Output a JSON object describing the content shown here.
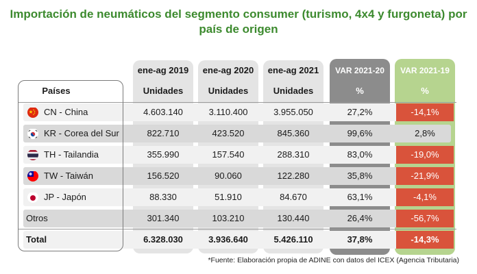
{
  "title_line1": "Importación de neumáticos del segmento consumer (turismo, 4x4 y furgoneta) por",
  "title_line2": "país de origen",
  "chart_data": {
    "type": "table",
    "column_headers": [
      "ene-ag 2019",
      "ene-ag 2020",
      "ene-ag 2021",
      "VAR 2021-20",
      "VAR 2021-19"
    ],
    "sub_headers": {
      "first": "Países",
      "units": "Unidades",
      "pct": "%"
    },
    "rows": [
      {
        "flag": "china-flag-icon",
        "country": "CN - China",
        "v2019": "4.603.140",
        "v2020": "3.110.400",
        "v2021": "3.955.050",
        "var2120": "27,2%",
        "var2119": "-14,1%",
        "var2119_negative": true
      },
      {
        "flag": "south-korea-flag-icon",
        "country": "KR - Corea del Sur",
        "v2019": "822.710",
        "v2020": "423.520",
        "v2021": "845.360",
        "var2120": "99,6%",
        "var2119": "2,8%",
        "var2119_negative": false
      },
      {
        "flag": "thailand-flag-icon",
        "country": "TH - Tailandia",
        "v2019": "355.990",
        "v2020": "157.540",
        "v2021": "288.310",
        "var2120": "83,0%",
        "var2119": "-19,0%",
        "var2119_negative": true
      },
      {
        "flag": "taiwan-flag-icon",
        "country": "TW - Taiwán",
        "v2019": "156.520",
        "v2020": "90.060",
        "v2021": "122.280",
        "var2120": "35,8%",
        "var2119": "-21,9%",
        "var2119_negative": true
      },
      {
        "flag": "japan-flag-icon",
        "country": "JP - Japón",
        "v2019": "88.330",
        "v2020": "51.910",
        "v2021": "84.670",
        "var2120": "63,1%",
        "var2119": "-4,1%",
        "var2119_negative": true
      },
      {
        "flag": "",
        "country": "Otros",
        "v2019": "301.340",
        "v2020": "103.210",
        "v2021": "130.440",
        "var2120": "26,4%",
        "var2119": "-56,7%",
        "var2119_negative": true
      }
    ],
    "total": {
      "country": "Total",
      "v2019": "6.328.030",
      "v2020": "3.936.640",
      "v2021": "5.426.110",
      "var2120": "37,8%",
      "var2119": "-14,3%",
      "var2119_negative": true
    }
  },
  "colors": {
    "title": "#3c8a2e",
    "negative": "#d9533b",
    "green_col": "#b6d48f",
    "dark_col": "#8c8c8c"
  },
  "source": "*Fuente: Elaboración propia de ADINE con datos del ICEX (Agencia Tributaria)"
}
